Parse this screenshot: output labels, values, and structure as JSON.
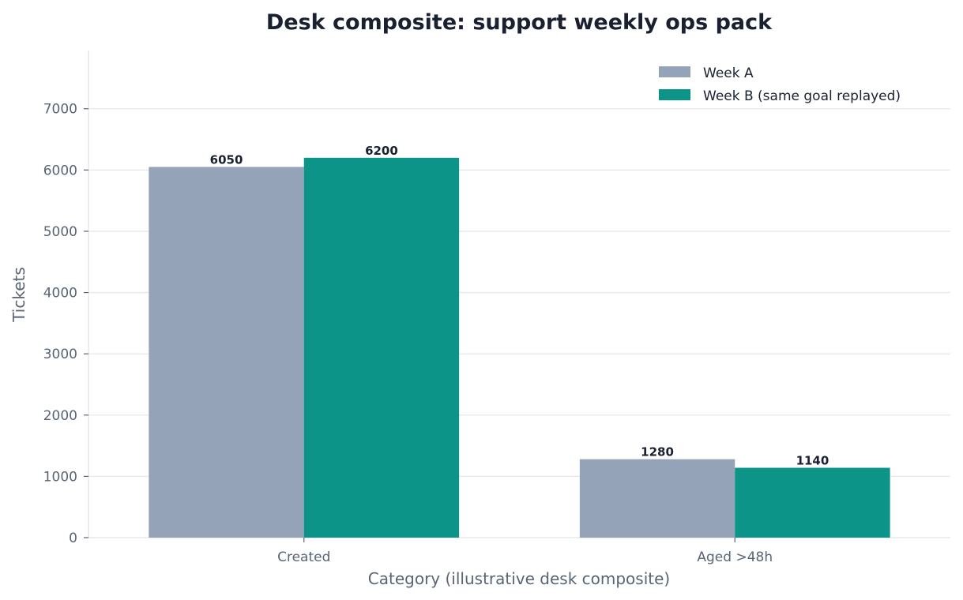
{
  "chart_data": {
    "type": "bar",
    "title": "Desk composite: support weekly ops pack",
    "xlabel": "Category (illustrative desk composite)",
    "ylabel": "Tickets",
    "categories": [
      "Created",
      "Aged >48h"
    ],
    "series": [
      {
        "name": "Week A",
        "values": [
          6050,
          1280
        ],
        "color": "#94a3b8"
      },
      {
        "name": "Week B (same goal replayed)",
        "values": [
          6200,
          1140
        ],
        "color": "#0d9488"
      }
    ],
    "ylim": [
      0,
      7950
    ],
    "yticks": [
      0,
      1000,
      2000,
      3000,
      4000,
      5000,
      6000,
      7000
    ],
    "grid": true,
    "legend_position": "top-right"
  }
}
